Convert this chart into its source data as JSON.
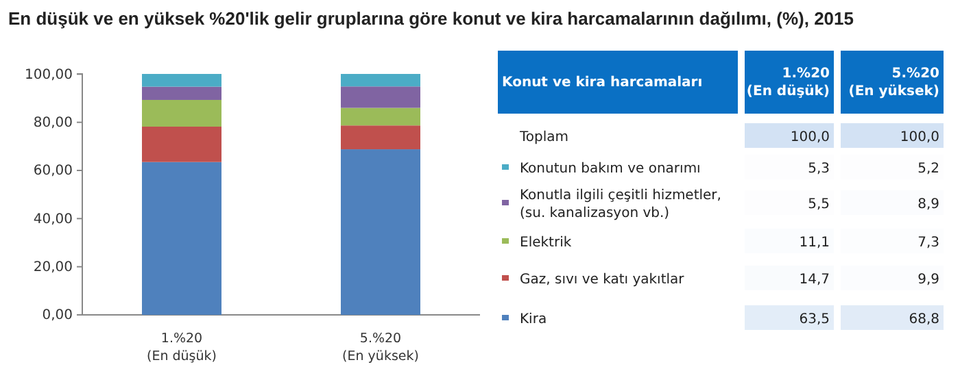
{
  "chart_data": [
    {
      "type": "bar",
      "title": "En düşük ve en yüksek %20'lik gelir gruplarına göre konut ve kira harcamalarının dağılımı, (%), 2015",
      "categories": [
        "1.%20\n(En düşük)",
        "5.%20\n(En yüksek)"
      ],
      "stacked": true,
      "ylim": [
        0,
        100.1
      ],
      "yticks": [
        {
          "value": 0,
          "label": "0,00"
        },
        {
          "value": 20,
          "label": "20,00"
        },
        {
          "value": 40,
          "label": "40,00"
        },
        {
          "value": 60,
          "label": "60,00"
        },
        {
          "value": 80,
          "label": "80,00"
        },
        {
          "value": 100,
          "label": "100,00"
        }
      ],
      "series": [
        {
          "color": "#4f81bd",
          "values": [
            63.5,
            68.8
          ]
        },
        {
          "color": "#c0504d",
          "values": [
            14.7,
            9.9
          ]
        },
        {
          "color": "#9bbb59",
          "values": [
            11.1,
            7.3
          ]
        },
        {
          "color": "#8064a2",
          "values": [
            5.5,
            8.9
          ]
        },
        {
          "color": "#4bacc6",
          "values": [
            5.3,
            5.2
          ]
        }
      ]
    },
    {
      "type": "heatmap",
      "ylabel": "Konut ve kira harcamaları",
      "categories": [
        "1.%20\n(En düşük)",
        "5.%20\n(En yüksek)"
      ],
      "y_categories": [
        "Toplam",
        "Konutun bakım ve onarımı",
        "Konutla ilgili çeşitli hizmetler, (su. kanalizasyon vb.)",
        "Elektrik",
        "Gaz, sıvı ve katı yakıtlar",
        "Kira"
      ],
      "cells": [
        [
          100.0,
          100.0
        ],
        [
          5.3,
          5.2
        ],
        [
          5.5,
          8.9
        ],
        [
          11.1,
          7.3
        ],
        [
          14.7,
          9.9
        ],
        [
          63.5,
          68.8
        ]
      ],
      "cell_labels": [
        [
          "100,0",
          "100,0"
        ],
        [
          "5,3",
          "5,2"
        ],
        [
          "5,5",
          "8,9"
        ],
        [
          "11,1",
          "7,3"
        ],
        [
          "14,7",
          "9,9"
        ],
        [
          "63,5",
          "68,8"
        ]
      ]
    }
  ]
}
